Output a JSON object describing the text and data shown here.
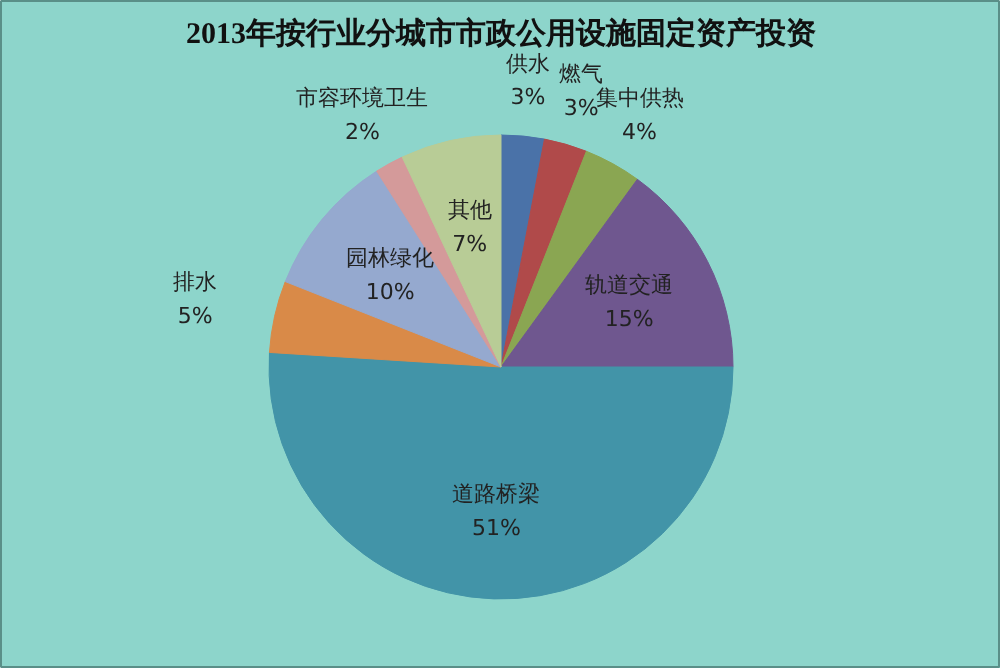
{
  "chart_data": {
    "type": "pie",
    "title": "2013年按行业分城市市政公用设施固定资产投资",
    "categories": [
      "供水",
      "燃气",
      "集中供热",
      "轨道交通",
      "道路桥梁",
      "排水",
      "园林绿化",
      "市容环境卫生",
      "其他"
    ],
    "values": [
      3,
      3,
      4,
      15,
      51,
      5,
      10,
      2,
      7
    ],
    "value_labels": [
      "3%",
      "3%",
      "4%",
      "15%",
      "51%",
      "5%",
      "10%",
      "2%",
      "7%"
    ],
    "colors": [
      "#4a72a8",
      "#b04a4a",
      "#8aa652",
      "#6f578f",
      "#4294a8",
      "#d98a48",
      "#95a9cf",
      "#d49a9a",
      "#b8cc96"
    ]
  }
}
